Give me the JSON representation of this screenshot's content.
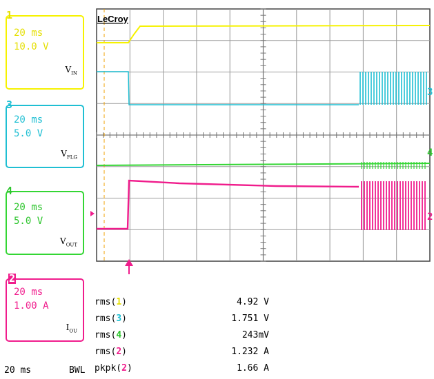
{
  "brand": "LeCroy",
  "colors": {
    "ch1": "#f6f200",
    "ch3": "#1fbfd3",
    "ch4": "#34d634",
    "ch2": "#f01c8c",
    "grid": "#9a9a9a"
  },
  "channels": [
    {
      "num": "1",
      "time": "20 ms",
      "scale": "10.0 V",
      "signal": "V",
      "sub": "IN"
    },
    {
      "num": "3",
      "time": "20 ms",
      "scale": "5.0 V",
      "signal": "V",
      "sub": "FLG"
    },
    {
      "num": "4",
      "time": "20 ms",
      "scale": "5.0 V",
      "signal": "V",
      "sub": "OUT"
    },
    {
      "num": "2",
      "time": "20 ms",
      "scale": "1.00 A",
      "signal": "I",
      "sub": "OU"
    }
  ],
  "measurements": [
    {
      "fn": "rms(",
      "ch": "1",
      "close": ")",
      "value": "4.92 V"
    },
    {
      "fn": "rms(",
      "ch": "3",
      "close": ")",
      "value": "1.751 V"
    },
    {
      "fn": "rms(",
      "ch": "4",
      "close": ")",
      "value": "243mV"
    },
    {
      "fn": "rms(",
      "ch": "2",
      "close": ")",
      "value": "1.232 A"
    },
    {
      "fn": "pkpk(",
      "ch": "2",
      "close": ")",
      "value": "1.66 A"
    }
  ],
  "status": {
    "timebase": "20 ms",
    "bwl": "BWL"
  },
  "trace_markers": {
    "ch3": "3",
    "ch4": "4",
    "ch2": "2"
  }
}
